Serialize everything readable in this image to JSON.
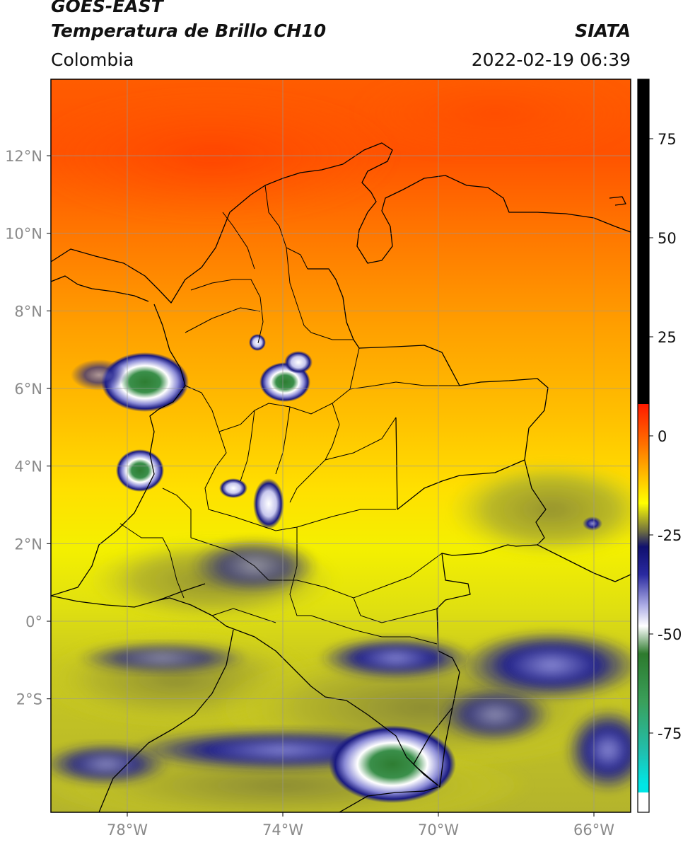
{
  "header": {
    "satellite": "GOES-EAST",
    "product": "Temperatura de Brillo CH10",
    "region": "Colombia",
    "organization": "SIATA",
    "datetime": "2022-02-19 06:39"
  },
  "map": {
    "lat_ticks": [
      "12°N",
      "10°N",
      "8°N",
      "6°N",
      "4°N",
      "2°N",
      "0°",
      "2°S"
    ],
    "lon_ticks": [
      "78°W",
      "74°W",
      "70°W",
      "66°W"
    ],
    "grid": true,
    "gridline_color": "#999999"
  },
  "colorbar": {
    "ticks": [
      "75",
      "50",
      "25",
      "0",
      "-25",
      "-50",
      "-75"
    ],
    "range": [
      -95,
      90
    ],
    "stops": [
      {
        "v": 90,
        "c": "#000000"
      },
      {
        "v": 8,
        "c": "#000000"
      },
      {
        "v": 8,
        "c": "#ff1a00"
      },
      {
        "v": -2,
        "c": "#ff7000"
      },
      {
        "v": -12,
        "c": "#ffd000"
      },
      {
        "v": -17,
        "c": "#ffff00"
      },
      {
        "v": -24,
        "c": "#707040"
      },
      {
        "v": -28,
        "c": "#10106e"
      },
      {
        "v": -35,
        "c": "#2a2aa0"
      },
      {
        "v": -43,
        "c": "#b0b0e6"
      },
      {
        "v": -48,
        "c": "#ffffff"
      },
      {
        "v": -55,
        "c": "#2d7a2d"
      },
      {
        "v": -67,
        "c": "#3a9f5a"
      },
      {
        "v": -80,
        "c": "#20c0b0"
      },
      {
        "v": -88,
        "c": "#00e6e6"
      },
      {
        "v": -90,
        "c": "#00e6e6"
      },
      {
        "v": -90,
        "c": "#ffffff"
      },
      {
        "v": -95,
        "c": "#ffffff"
      }
    ]
  }
}
